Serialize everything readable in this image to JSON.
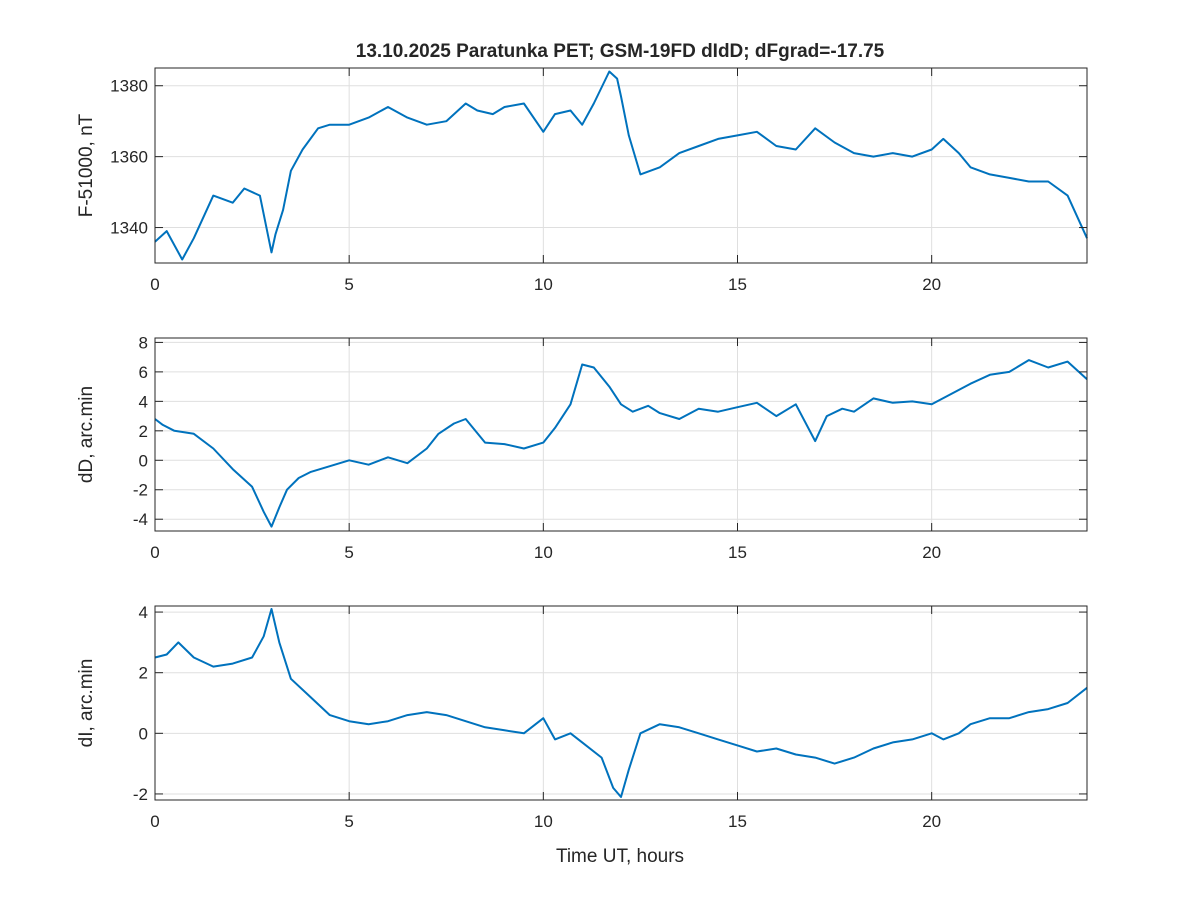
{
  "title": "13.10.2025  Paratunka PET; GSM-19FD dIdD;    dFgrad=-17.75",
  "xlabel": "Time UT, hours",
  "colors": {
    "line": "#0072bd",
    "grid": "#dfdfdf",
    "axes": "#262626"
  },
  "chart_data": [
    {
      "type": "line",
      "ylabel": "F-51000, nT",
      "xlim": [
        0,
        24
      ],
      "ylim": [
        1330,
        1385
      ],
      "xticks": [
        0,
        5,
        10,
        15,
        20
      ],
      "yticks": [
        1340,
        1360,
        1380
      ],
      "grid": true,
      "x": [
        0,
        0.3,
        0.7,
        1.0,
        1.5,
        2.0,
        2.3,
        2.7,
        3.0,
        3.1,
        3.3,
        3.5,
        3.8,
        4.2,
        4.5,
        5.0,
        5.5,
        6.0,
        6.5,
        7.0,
        7.5,
        8.0,
        8.3,
        8.7,
        9.0,
        9.5,
        10.0,
        10.3,
        10.7,
        11.0,
        11.3,
        11.7,
        11.9,
        12.0,
        12.2,
        12.5,
        13.0,
        13.5,
        14.0,
        14.5,
        15.0,
        15.5,
        16.0,
        16.5,
        17.0,
        17.5,
        18.0,
        18.5,
        19.0,
        19.5,
        20.0,
        20.3,
        20.7,
        21.0,
        21.5,
        22.0,
        22.5,
        23.0,
        23.5,
        24.0
      ],
      "values": [
        1336,
        1339,
        1331,
        1337,
        1349,
        1347,
        1351,
        1349,
        1333,
        1338,
        1345,
        1356,
        1362,
        1368,
        1369,
        1369,
        1371,
        1374,
        1371,
        1369,
        1370,
        1375,
        1373,
        1372,
        1374,
        1375,
        1367,
        1372,
        1373,
        1369,
        1375,
        1384,
        1382,
        1377,
        1366,
        1355,
        1357,
        1361,
        1363,
        1365,
        1366,
        1367,
        1363,
        1362,
        1368,
        1364,
        1361,
        1360,
        1361,
        1360,
        1362,
        1365,
        1361,
        1357,
        1355,
        1354,
        1353,
        1353,
        1349,
        1337
      ]
    },
    {
      "type": "line",
      "ylabel": "dD, arc.min",
      "xlim": [
        0,
        24
      ],
      "ylim": [
        -4.8,
        8.3
      ],
      "xticks": [
        0,
        5,
        10,
        15,
        20
      ],
      "yticks": [
        -4,
        -2,
        0,
        2,
        4,
        6,
        8
      ],
      "grid": true,
      "x": [
        0,
        0.2,
        0.5,
        1.0,
        1.5,
        2.0,
        2.5,
        2.8,
        3.0,
        3.2,
        3.4,
        3.7,
        4.0,
        4.5,
        5.0,
        5.5,
        6.0,
        6.5,
        7.0,
        7.3,
        7.7,
        8.0,
        8.5,
        9.0,
        9.5,
        10.0,
        10.3,
        10.7,
        11.0,
        11.3,
        11.7,
        12.0,
        12.3,
        12.7,
        13.0,
        13.5,
        14.0,
        14.5,
        15.0,
        15.5,
        16.0,
        16.5,
        17.0,
        17.3,
        17.7,
        18.0,
        18.5,
        19.0,
        19.5,
        20.0,
        20.5,
        21.0,
        21.5,
        22.0,
        22.5,
        23.0,
        23.5,
        24.0
      ],
      "values": [
        2.8,
        2.4,
        2.0,
        1.8,
        0.8,
        -0.6,
        -1.8,
        -3.5,
        -4.5,
        -3.2,
        -2.0,
        -1.2,
        -0.8,
        -0.4,
        0.0,
        -0.3,
        0.2,
        -0.2,
        0.8,
        1.8,
        2.5,
        2.8,
        1.2,
        1.1,
        0.8,
        1.2,
        2.2,
        3.8,
        6.5,
        6.3,
        5.0,
        3.8,
        3.3,
        3.7,
        3.2,
        2.8,
        3.5,
        3.3,
        3.6,
        3.9,
        3.0,
        3.8,
        1.3,
        3.0,
        3.5,
        3.3,
        4.2,
        3.9,
        4.0,
        3.8,
        4.5,
        5.2,
        5.8,
        6.0,
        6.8,
        6.3,
        6.7,
        5.5
      ]
    },
    {
      "type": "line",
      "ylabel": "dI, arc.min",
      "xlim": [
        0,
        24
      ],
      "ylim": [
        -2.2,
        4.2
      ],
      "xticks": [
        0,
        5,
        10,
        15,
        20
      ],
      "yticks": [
        -2,
        0,
        2,
        4
      ],
      "grid": true,
      "x": [
        0,
        0.3,
        0.6,
        1.0,
        1.5,
        2.0,
        2.5,
        2.8,
        3.0,
        3.2,
        3.5,
        4.0,
        4.5,
        5.0,
        5.5,
        6.0,
        6.5,
        7.0,
        7.5,
        8.0,
        8.5,
        9.0,
        9.5,
        10.0,
        10.3,
        10.7,
        11.0,
        11.5,
        11.8,
        12.0,
        12.2,
        12.5,
        13.0,
        13.5,
        14.0,
        14.5,
        15.0,
        15.5,
        16.0,
        16.5,
        17.0,
        17.5,
        18.0,
        18.5,
        19.0,
        19.5,
        20.0,
        20.3,
        20.7,
        21.0,
        21.5,
        22.0,
        22.5,
        23.0,
        23.5,
        24.0
      ],
      "values": [
        2.5,
        2.6,
        3.0,
        2.5,
        2.2,
        2.3,
        2.5,
        3.2,
        4.1,
        3.0,
        1.8,
        1.2,
        0.6,
        0.4,
        0.3,
        0.4,
        0.6,
        0.7,
        0.6,
        0.4,
        0.2,
        0.1,
        0.0,
        0.5,
        -0.2,
        0.0,
        -0.3,
        -0.8,
        -1.8,
        -2.1,
        -1.2,
        0.0,
        0.3,
        0.2,
        0.0,
        -0.2,
        -0.4,
        -0.6,
        -0.5,
        -0.7,
        -0.8,
        -1.0,
        -0.8,
        -0.5,
        -0.3,
        -0.2,
        0.0,
        -0.2,
        0.0,
        0.3,
        0.5,
        0.5,
        0.7,
        0.8,
        1.0,
        1.5
      ]
    }
  ]
}
